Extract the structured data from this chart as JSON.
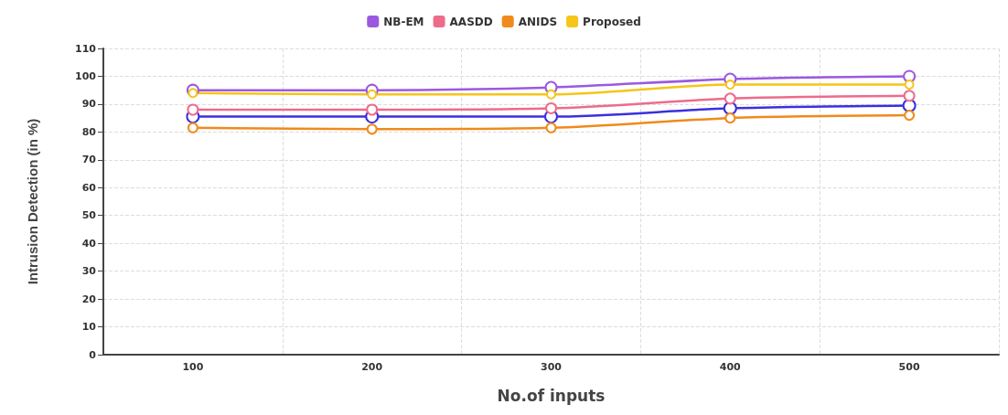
{
  "chart_data": {
    "type": "line",
    "xlabel": "No.of inputs",
    "ylabel": "Intrusion Detection (in %)",
    "categories": [
      "100",
      "200",
      "300",
      "400",
      "500"
    ],
    "series": [
      {
        "color": "#3b2fe0",
        "values": [
          85.5,
          85.5,
          85.5,
          88.5,
          89.5
        ]
      },
      {
        "name": "NB-EM",
        "color": "#9b59e0",
        "values": [
          95,
          95,
          96,
          99,
          100
        ]
      },
      {
        "name": "AASDD",
        "color": "#ee6b8b",
        "values": [
          88,
          88,
          88.5,
          92,
          93
        ]
      },
      {
        "name": "ANIDS",
        "color": "#f08a1c",
        "values": [
          81.5,
          81,
          81.5,
          85,
          86
        ]
      },
      {
        "name": "Proposed",
        "color": "#f5c518",
        "values": [
          94,
          93.5,
          93.5,
          97,
          97
        ]
      }
    ],
    "ylim": [
      0,
      110
    ],
    "yticks": [
      0,
      10,
      20,
      30,
      40,
      50,
      60,
      70,
      80,
      90,
      100,
      110
    ],
    "grid": true,
    "legend": "top",
    "marker": "circle",
    "line_style": "solid"
  }
}
